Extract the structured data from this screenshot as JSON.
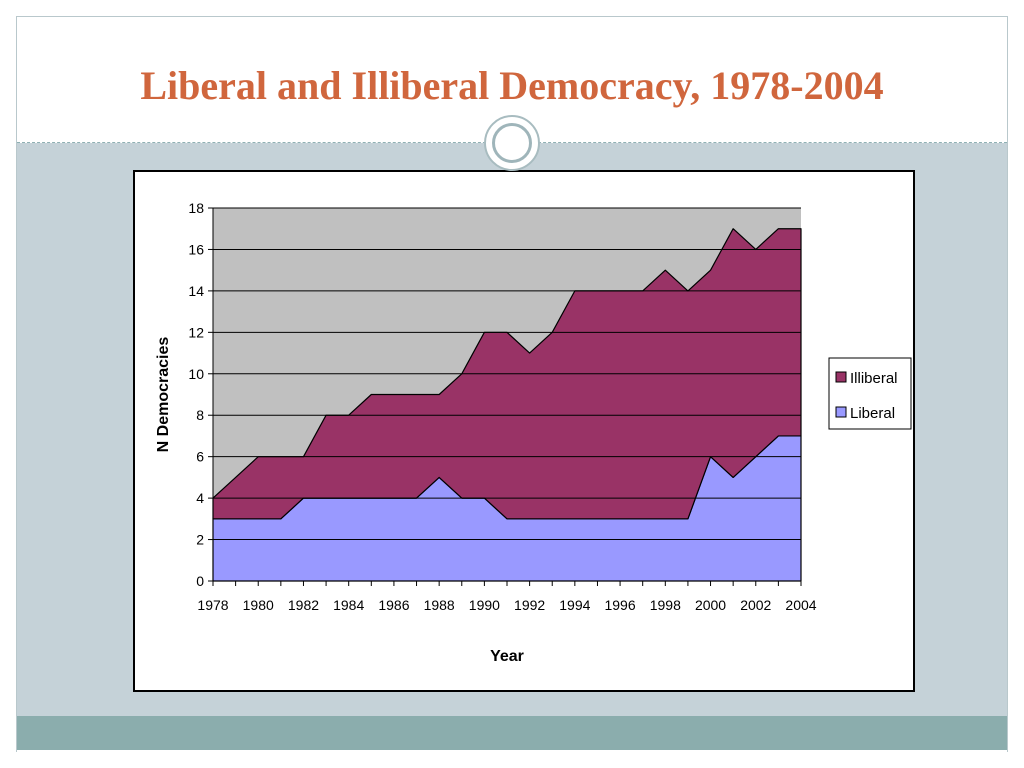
{
  "slide": {
    "title": "Liberal and Illiberal Democracy, 1978-2004"
  },
  "colors": {
    "title": "#d0663d",
    "content_band": "#c5d2d8",
    "footer_band": "#8badad",
    "plot_background": "#c0c0c0",
    "illiberal": "#993366",
    "liberal": "#9999ff"
  },
  "chart_data": {
    "type": "area",
    "stacked": true,
    "xlabel": "Year",
    "ylabel": "N Democracies",
    "ylim": [
      0,
      18
    ],
    "yticks": [
      0,
      2,
      4,
      6,
      8,
      10,
      12,
      14,
      16,
      18
    ],
    "x": [
      1978,
      1979,
      1980,
      1981,
      1982,
      1983,
      1984,
      1985,
      1986,
      1987,
      1988,
      1989,
      1990,
      1991,
      1992,
      1993,
      1994,
      1995,
      1996,
      1997,
      1998,
      1999,
      2000,
      2001,
      2002,
      2003,
      2004
    ],
    "xtick_labels": [
      "1978",
      "1980",
      "1982",
      "1984",
      "1986",
      "1988",
      "1990",
      "1992",
      "1994",
      "1996",
      "1998",
      "2000",
      "2002",
      "2004"
    ],
    "grid": "horizontal",
    "legend_position": "right",
    "series": [
      {
        "name": "Liberal",
        "color": "#9999ff",
        "values": [
          3,
          3,
          3,
          3,
          4,
          4,
          4,
          4,
          4,
          4,
          5,
          4,
          4,
          3,
          3,
          3,
          3,
          3,
          3,
          3,
          3,
          3,
          6,
          5,
          6,
          7,
          7
        ]
      },
      {
        "name": "Illiberal",
        "color": "#993366",
        "values": [
          1,
          2,
          3,
          3,
          2,
          4,
          4,
          5,
          5,
          5,
          4,
          6,
          8,
          9,
          8,
          9,
          11,
          11,
          11,
          11,
          12,
          11,
          9,
          12,
          10,
          10,
          10
        ]
      }
    ],
    "legend": [
      "Illiberal",
      "Liberal"
    ]
  }
}
